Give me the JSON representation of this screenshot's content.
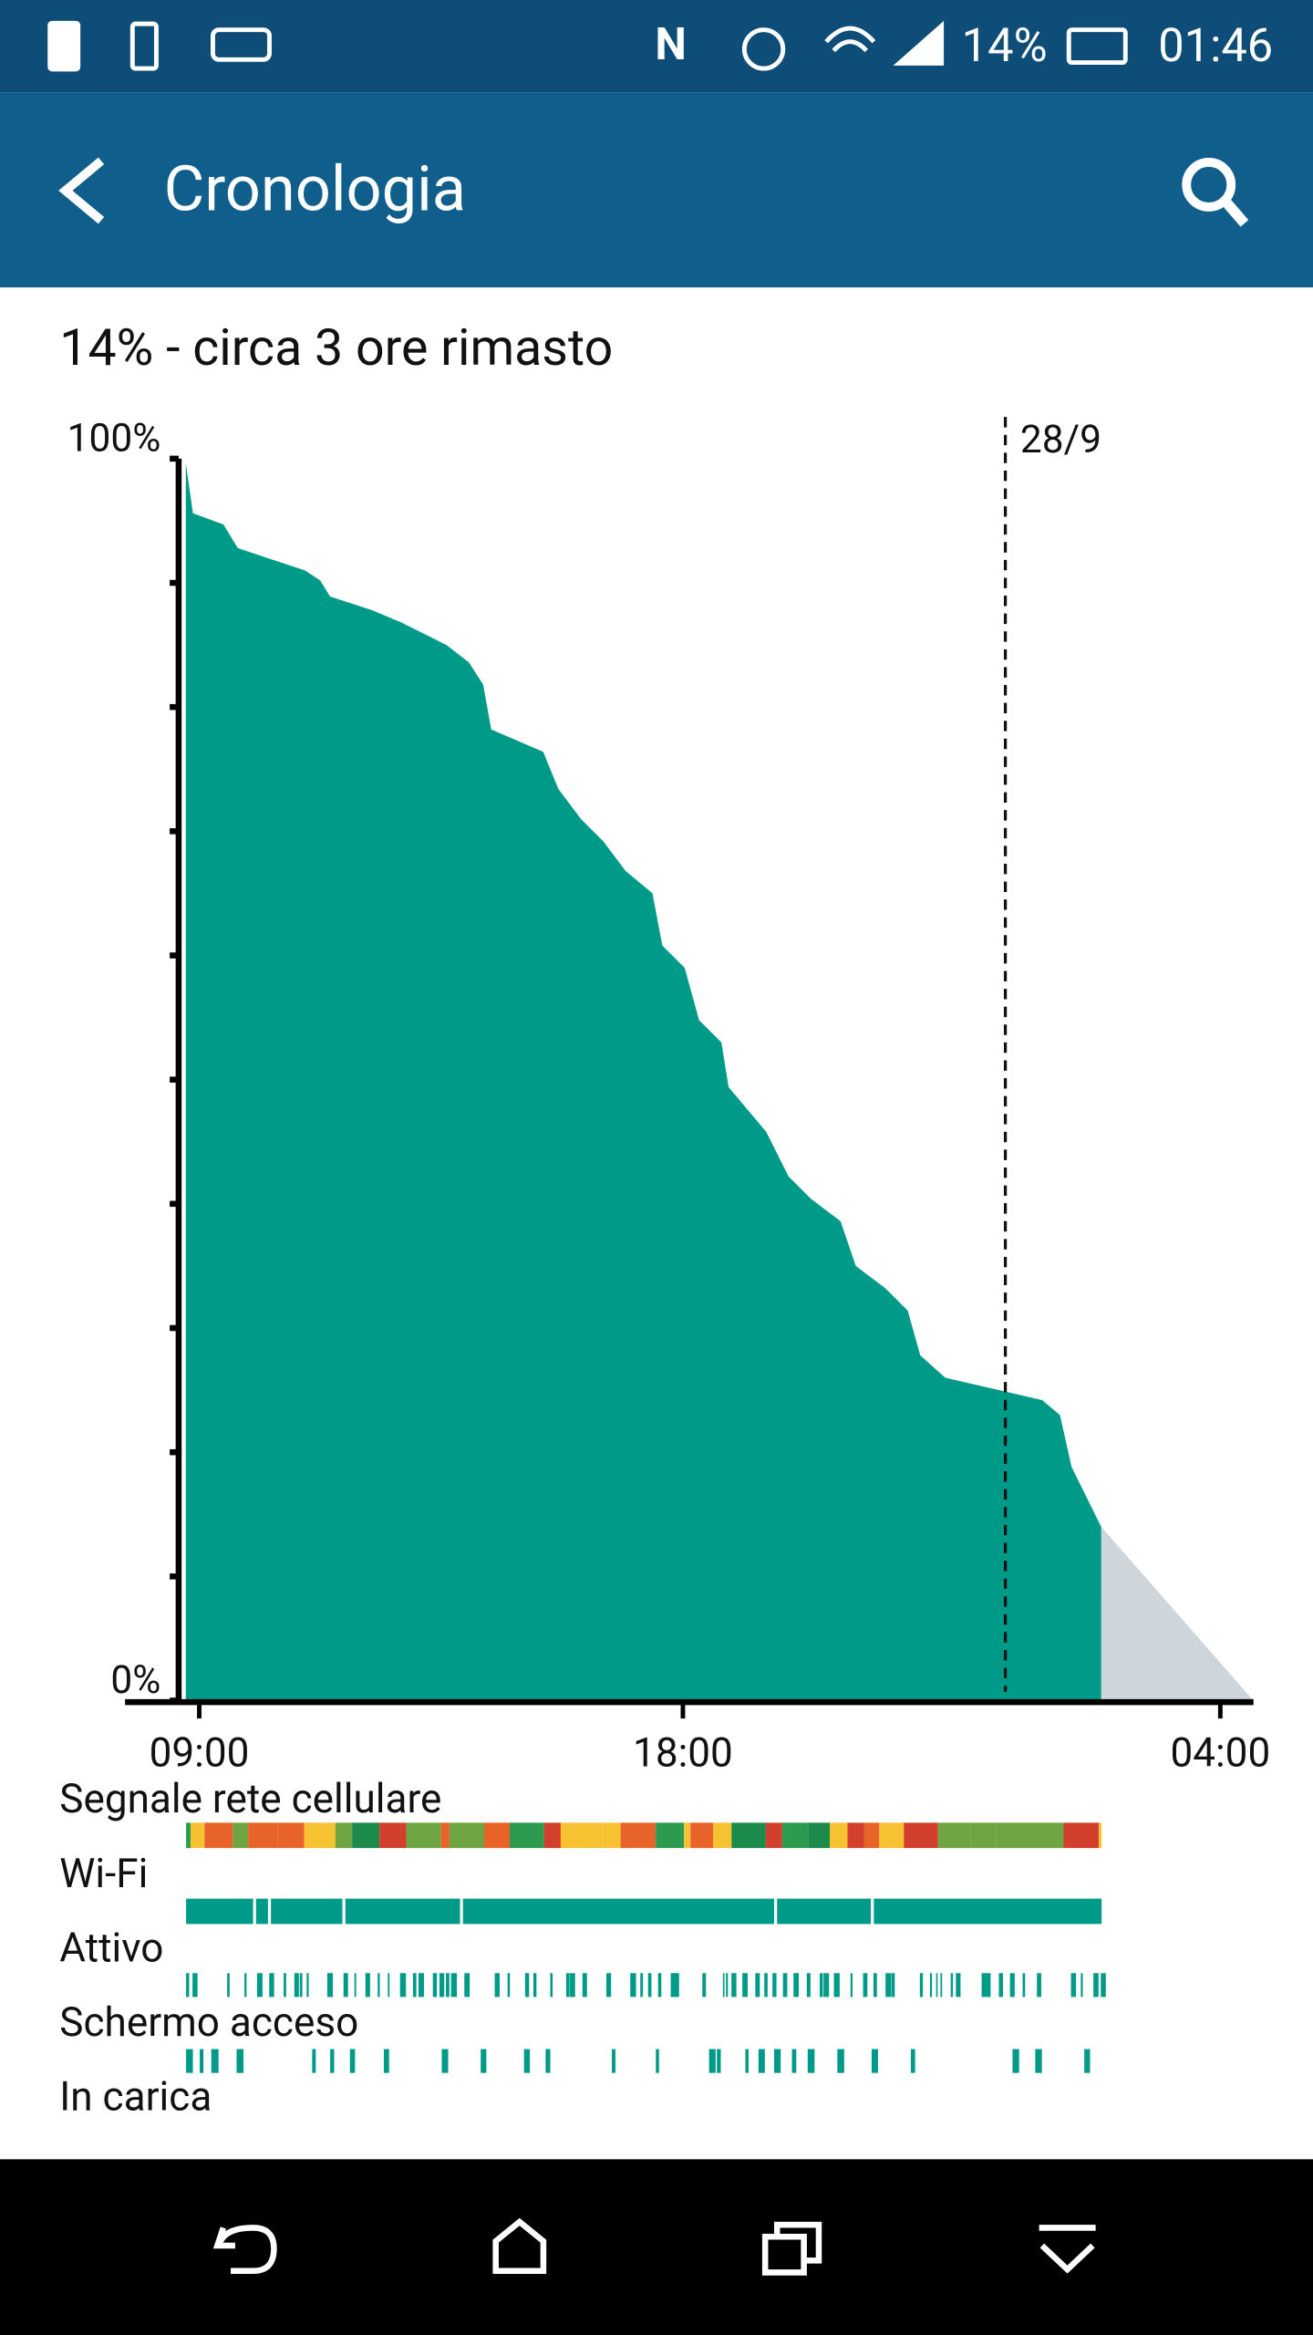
{
  "status_bar": {
    "battery": "14%",
    "time": "01:46"
  },
  "app_bar": {
    "title": "Cronologia"
  },
  "summary": "14% - circa 3 ore rimasto",
  "chart_data": {
    "type": "area",
    "color": "#009a88",
    "x": [
      "08:45",
      "08:53",
      "09:27",
      "09:43",
      "10:16",
      "10:58",
      "11:15",
      "11:26",
      "12:13",
      "12:46",
      "13:36",
      "14:01",
      "14:17",
      "14:26",
      "15:24",
      "15:41",
      "16:06",
      "16:31",
      "16:56",
      "17:26",
      "17:37",
      "18:02",
      "18:18",
      "18:43",
      "18:51",
      "19:33",
      "19:58",
      "20:23",
      "20:56",
      "21:13",
      "21:46",
      "22:11",
      "22:25",
      "22:53",
      "00:41",
      "01:01",
      "01:14",
      "01:47"
    ],
    "values": [
      99.6,
      95.6,
      94.7,
      92.8,
      92,
      91,
      90.2,
      88.9,
      87.8,
      86.8,
      85,
      83.6,
      81.8,
      78.2,
      76.4,
      73.4,
      71,
      69.2,
      66.8,
      65,
      60.8,
      59,
      54.8,
      53,
      49.4,
      45.8,
      42.2,
      40.4,
      38.6,
      35,
      33.2,
      31.4,
      27.8,
      26,
      24.2,
      23,
      18.8,
      14
    ],
    "forecast": {
      "x": [
        "01:47",
        "04:37"
      ],
      "values": [
        14,
        0
      ],
      "color": "#cfd6db"
    },
    "xlim": [
      "08:37",
      "04:37"
    ],
    "xticks": [
      "09:00",
      "18:00",
      "04:00"
    ],
    "ylim": [
      0,
      100
    ],
    "yticks": [
      {
        "value": 0,
        "label": "0%"
      },
      10,
      20,
      30,
      40,
      50,
      60,
      70,
      80,
      90,
      {
        "value": 100,
        "label": "100%"
      }
    ],
    "marker": {
      "x": "00:00",
      "label": "28/9"
    }
  },
  "tracks": [
    "Segnale rete cellulare",
    "Wi-Fi",
    "Attivo",
    "Schermo acceso",
    "In carica"
  ]
}
